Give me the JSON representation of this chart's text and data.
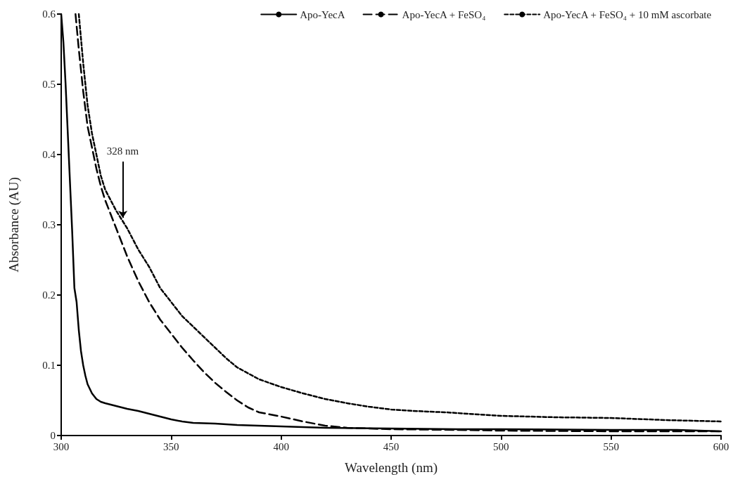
{
  "chart_data": {
    "type": "line",
    "xlabel": "Wavelength (nm)",
    "ylabel": "Absorbance (AU)",
    "xlim": [
      300,
      600
    ],
    "xticks": [
      300,
      350,
      400,
      450,
      500,
      550,
      600
    ],
    "ylim": [
      0,
      0.6
    ],
    "yticks": [
      0,
      0.1,
      0.2,
      0.3,
      0.4,
      0.5,
      0.6
    ],
    "grid": false,
    "legend": "top right",
    "marker": "none",
    "annotations": [
      {
        "text": "328 nm",
        "x": 328,
        "y": 0.31
      }
    ],
    "series": [
      {
        "name": "Apo-YecA",
        "color": "#000000",
        "line_style": "solid",
        "x": [
          300,
          301,
          302,
          303,
          304,
          305,
          306,
          307,
          308,
          309,
          310,
          311,
          312,
          314,
          316,
          318,
          320,
          325,
          330,
          335,
          340,
          345,
          350,
          355,
          360,
          370,
          380,
          390,
          400,
          420,
          450,
          480,
          500,
          550,
          580,
          590,
          600
        ],
        "values": [
          0.6,
          0.56,
          0.5,
          0.43,
          0.36,
          0.29,
          0.21,
          0.19,
          0.15,
          0.12,
          0.1,
          0.085,
          0.073,
          0.06,
          0.052,
          0.048,
          0.046,
          0.042,
          0.038,
          0.035,
          0.031,
          0.027,
          0.023,
          0.02,
          0.018,
          0.017,
          0.015,
          0.014,
          0.013,
          0.011,
          0.01,
          0.009,
          0.009,
          0.008,
          0.008,
          0.007,
          0.006
        ]
      },
      {
        "name": "Apo-YecA + FeSO₄",
        "color": "#000000",
        "line_style": "dashed",
        "x": [
          306.5,
          308,
          310,
          312,
          314,
          316,
          318,
          320,
          325,
          330,
          335,
          340,
          345,
          350,
          355,
          360,
          365,
          370,
          375,
          380,
          385,
          390,
          395,
          400,
          410,
          420,
          430,
          450,
          480,
          500,
          550,
          600
        ],
        "values": [
          0.6,
          0.55,
          0.49,
          0.44,
          0.41,
          0.38,
          0.355,
          0.335,
          0.295,
          0.255,
          0.22,
          0.19,
          0.165,
          0.145,
          0.125,
          0.107,
          0.09,
          0.075,
          0.062,
          0.05,
          0.04,
          0.033,
          0.03,
          0.027,
          0.02,
          0.014,
          0.011,
          0.009,
          0.008,
          0.007,
          0.006,
          0.006
        ]
      },
      {
        "name": "Apo-YecA + FeSO₄ + 10 mM ascorbate",
        "color": "#000000",
        "line_style": "dotted",
        "x": [
          308,
          310,
          312,
          314,
          316,
          318,
          320,
          325,
          330,
          335,
          340,
          345,
          350,
          355,
          360,
          365,
          370,
          375,
          380,
          390,
          400,
          410,
          420,
          430,
          440,
          450,
          460,
          475,
          500,
          525,
          550,
          575,
          600
        ],
        "values": [
          0.6,
          0.53,
          0.47,
          0.43,
          0.4,
          0.37,
          0.35,
          0.32,
          0.295,
          0.265,
          0.24,
          0.21,
          0.19,
          0.17,
          0.155,
          0.14,
          0.125,
          0.11,
          0.097,
          0.08,
          0.069,
          0.06,
          0.052,
          0.046,
          0.041,
          0.037,
          0.035,
          0.033,
          0.028,
          0.026,
          0.025,
          0.022,
          0.02
        ]
      }
    ]
  }
}
